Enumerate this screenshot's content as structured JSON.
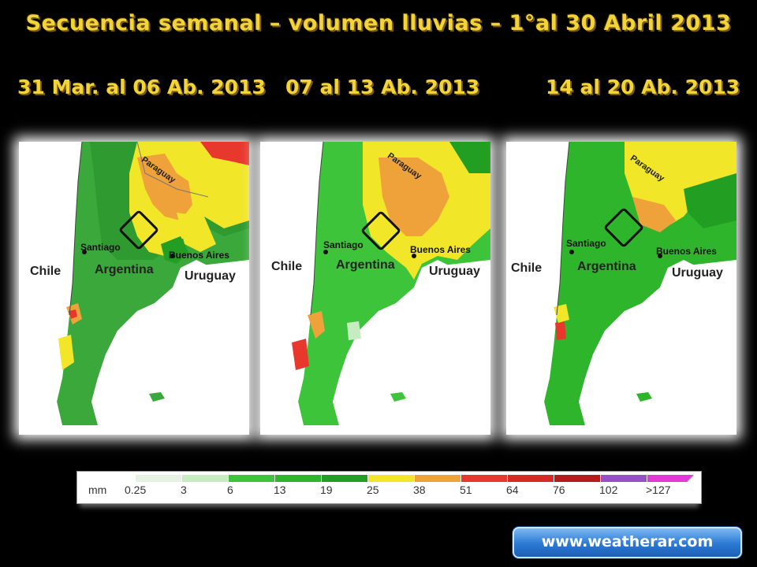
{
  "title": "Secuencia semanal – volumen lluvias – 1°al 30 Abril 2013",
  "panels": [
    {
      "period": "31 Mar. al 06 Ab. 2013"
    },
    {
      "period": "07 al 13 Ab. 2013"
    },
    {
      "period": "14 al 20 Ab. 2013"
    }
  ],
  "map_labels": {
    "chile": "Chile",
    "argentina": "Argentina",
    "uruguay": "Uruguay",
    "paraguay": "Paraguay",
    "santiago": "Santiago",
    "buenos_aires": "Buenos Aires"
  },
  "legend": {
    "unit": "mm",
    "ticks": [
      "0.25",
      "3",
      "6",
      "13",
      "19",
      "25",
      "38",
      "51",
      "64",
      "76",
      "102",
      ">127"
    ],
    "colors": [
      "#e6f2e2",
      "#c8ecc2",
      "#3ec43a",
      "#2fb52c",
      "#229e22",
      "#f2e629",
      "#f0a23a",
      "#e8382e",
      "#d82a22",
      "#b81c18",
      "#9a4fc8",
      "#e23ad6"
    ]
  },
  "website": "www.weatherar.com",
  "colors": {
    "title_yellow": "#f2d43a",
    "rain_green": "#3aa83a",
    "rain_yellow": "#f2e629",
    "rain_orange": "#f0a23a",
    "rain_red": "#e8382e"
  }
}
